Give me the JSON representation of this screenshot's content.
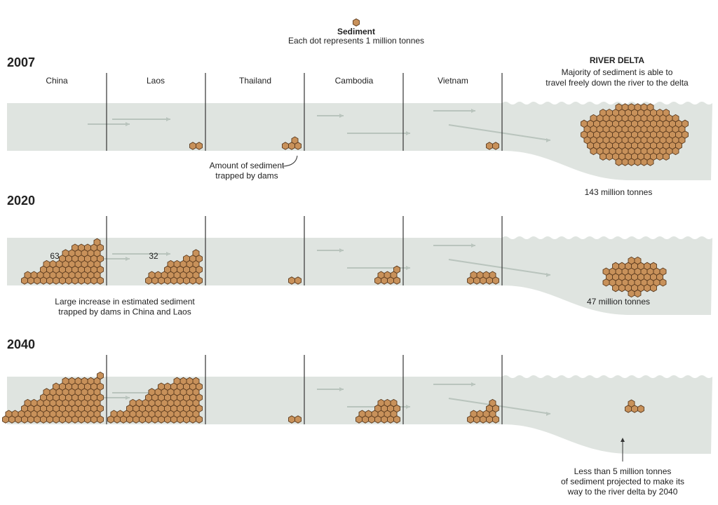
{
  "legend": {
    "title": "Sediment",
    "note": "Each dot represents 1 million tonnes"
  },
  "countries": [
    "China",
    "Laos",
    "Thailand",
    "Cambodia",
    "Vietnam"
  ],
  "delta_title": "RIVER DELTA",
  "delta_note": [
    "Majority of sediment is able to",
    "travel freely down the river to the delta"
  ],
  "panels": [
    {
      "year": "2007",
      "trapped": [
        0,
        2,
        4,
        0,
        2
      ],
      "delta": 143,
      "delta_label": "143 million tonnes",
      "note": [
        "Amount of sediment",
        "trapped by dams"
      ]
    },
    {
      "year": "2020",
      "trapped": [
        {
          "value": 63,
          "label": "63"
        },
        {
          "value": 32,
          "label": "32"
        },
        2,
        8,
        9
      ],
      "delta": 47,
      "delta_label": "47 million tonnes",
      "note": [
        "Large increase in estimated sediment",
        "trapped by dams in China and Laos"
      ]
    },
    {
      "year": "2040",
      "trapped": [
        90,
        80,
        2,
        20,
        12
      ],
      "delta": 4,
      "note": [
        "Less than 5 million tonnes",
        "of sediment projected to make its",
        "way to the river delta by 2040"
      ]
    }
  ]
}
